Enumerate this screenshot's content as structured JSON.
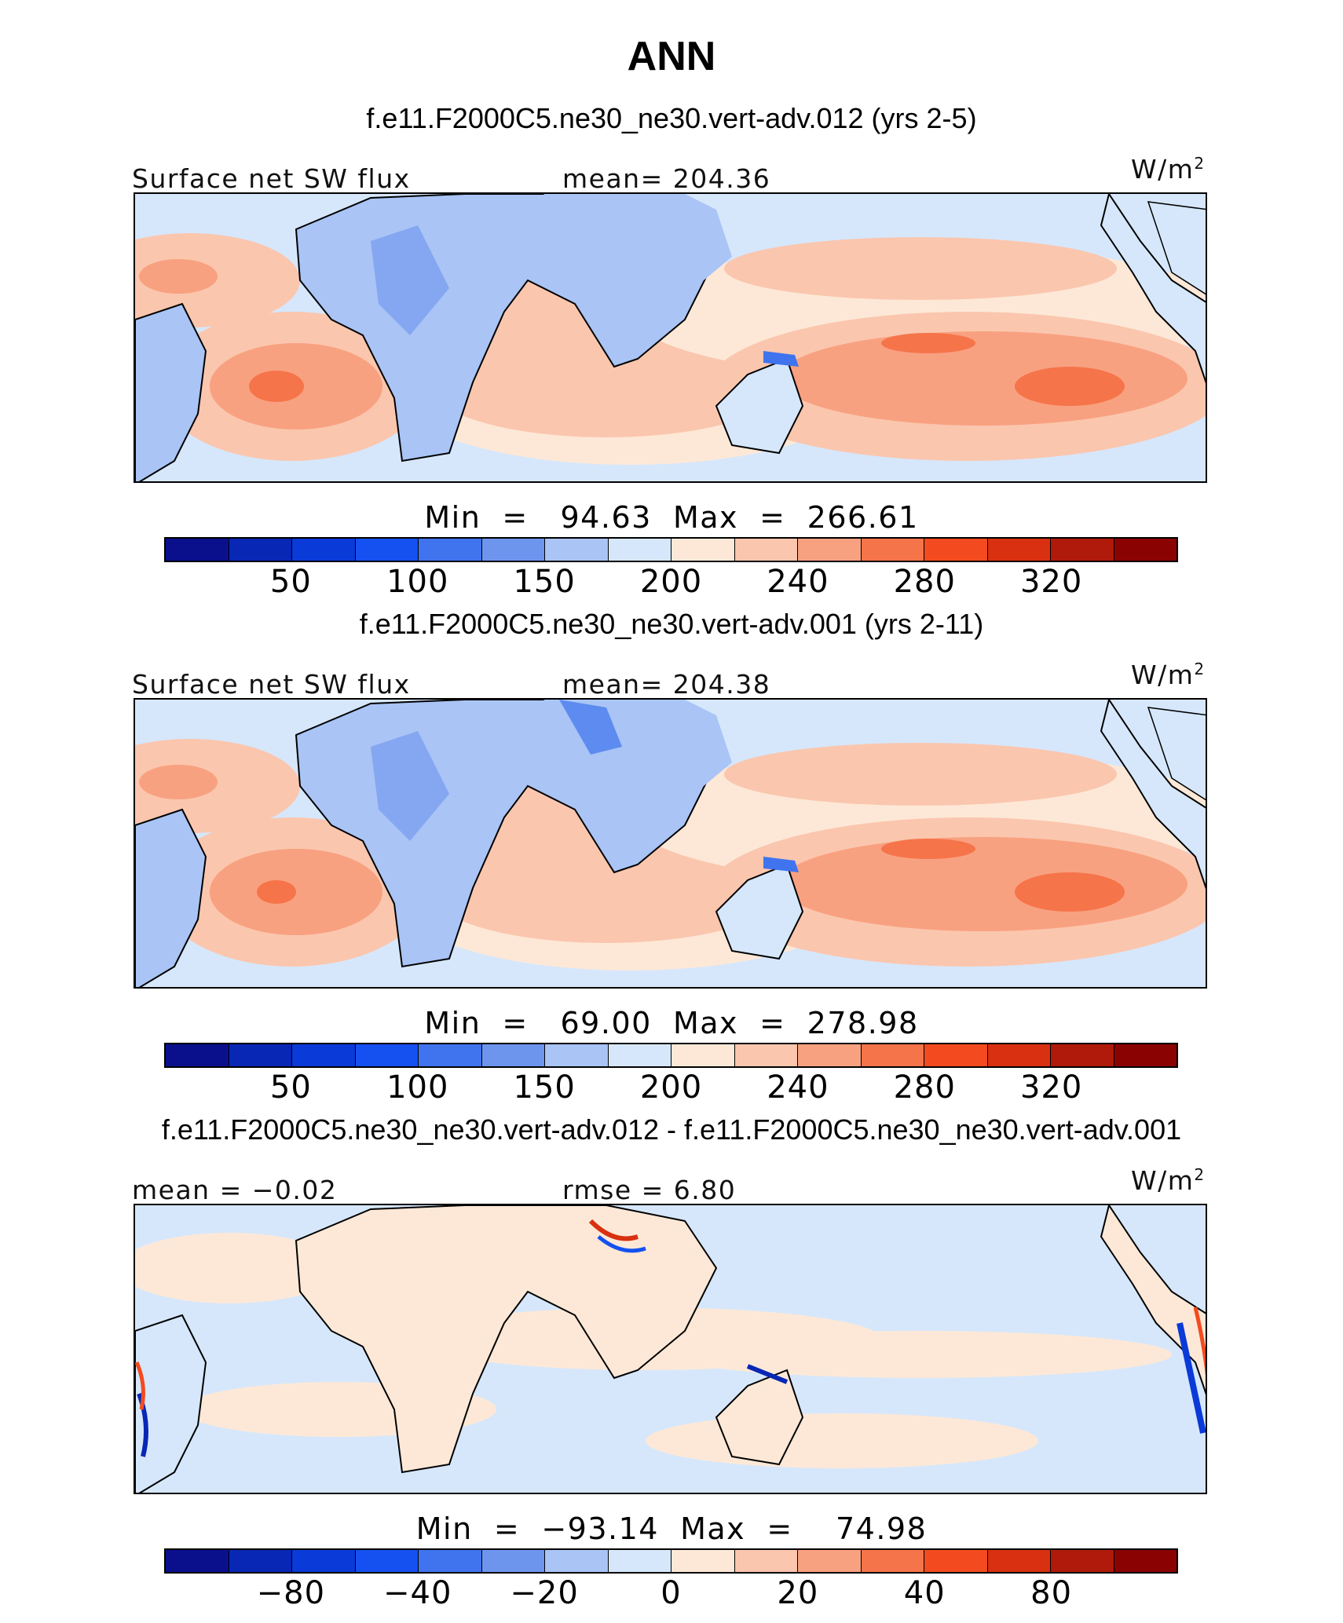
{
  "title": "ANN",
  "units": "W/m",
  "units_exponent": "2",
  "chart_data": [
    {
      "type": "heatmap",
      "title": "f.e11.F2000C5.ne30_ne30.vert-adv.012 (yrs 2-5)",
      "variable": "Surface net SW flux",
      "stat_left": "Surface net SW flux",
      "stat_mid": "mean=  204.36",
      "minmax": "Min  =   94.63  Max  =  266.61",
      "min": 94.63,
      "max": 266.61,
      "mean": 204.36,
      "colorbar_ticks": [
        "50",
        "100",
        "150",
        "200",
        "240",
        "280",
        "320"
      ],
      "colorbar_colors": [
        "#0a0f8c",
        "#0827b5",
        "#0a3ad8",
        "#1550f0",
        "#3f74ee",
        "#6e95ee",
        "#a9c4f5",
        "#d6e7fb",
        "#fde8d7",
        "#fbc6ae",
        "#f8a180",
        "#f6744a",
        "#f34b1f",
        "#d83010",
        "#b01a0a",
        "#8a0202"
      ]
    },
    {
      "type": "heatmap",
      "title": "f.e11.F2000C5.ne30_ne30.vert-adv.001 (yrs 2-11)",
      "variable": "Surface net SW flux",
      "stat_left": "Surface net SW flux",
      "stat_mid": "mean=  204.38",
      "minmax": "Min  =   69.00  Max  =  278.98",
      "min": 69.0,
      "max": 278.98,
      "mean": 204.38,
      "colorbar_ticks": [
        "50",
        "100",
        "150",
        "200",
        "240",
        "280",
        "320"
      ],
      "colorbar_colors": [
        "#0a0f8c",
        "#0827b5",
        "#0a3ad8",
        "#1550f0",
        "#3f74ee",
        "#6e95ee",
        "#a9c4f5",
        "#d6e7fb",
        "#fde8d7",
        "#fbc6ae",
        "#f8a180",
        "#f6744a",
        "#f34b1f",
        "#d83010",
        "#b01a0a",
        "#8a0202"
      ]
    },
    {
      "type": "heatmap",
      "title": "f.e11.F2000C5.ne30_ne30.vert-adv.012 - f.e11.F2000C5.ne30_ne30.vert-adv.001",
      "stat_left": "mean =   −0.02",
      "stat_mid": "rmse =     6.80",
      "minmax": "Min  =  −93.14  Max  =    74.98",
      "min": -93.14,
      "max": 74.98,
      "mean": -0.02,
      "rmse": 6.8,
      "colorbar_ticks": [
        "−80",
        "−40",
        "−20",
        "0",
        "20",
        "40",
        "80"
      ],
      "colorbar_colors": [
        "#0a0f8c",
        "#0827b5",
        "#0a3ad8",
        "#1550f0",
        "#3f74ee",
        "#6e95ee",
        "#a9c4f5",
        "#d6e7fb",
        "#fde8d7",
        "#fbc6ae",
        "#f8a180",
        "#f6744a",
        "#f34b1f",
        "#d83010",
        "#b01a0a",
        "#8a0202"
      ]
    }
  ]
}
